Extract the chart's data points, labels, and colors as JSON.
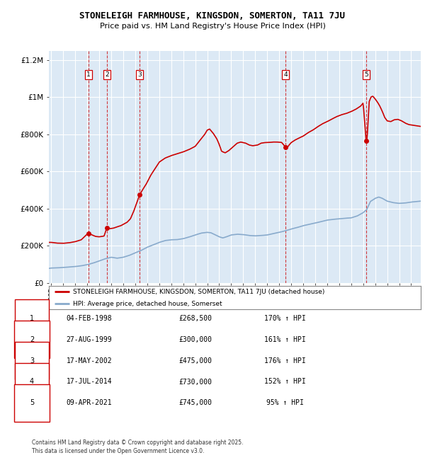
{
  "title": "STONELEIGH FARMHOUSE, KINGSDON, SOMERTON, TA11 7JU",
  "subtitle": "Price paid vs. HM Land Registry's House Price Index (HPI)",
  "background_color": "#ffffff",
  "plot_bg_color": "#dce9f5",
  "red_line_color": "#cc0000",
  "blue_line_color": "#88aacc",
  "sale_points": [
    {
      "label": "1",
      "date": "1998-02-04",
      "price": 268500,
      "x": 1998.09
    },
    {
      "label": "2",
      "date": "1999-08-27",
      "price": 300000,
      "x": 1999.65
    },
    {
      "label": "3",
      "date": "2002-05-17",
      "price": 475000,
      "x": 2002.37
    },
    {
      "label": "4",
      "date": "2014-07-17",
      "price": 730000,
      "x": 2014.54
    },
    {
      "label": "5",
      "date": "2021-04-09",
      "price": 745000,
      "x": 2021.27
    }
  ],
  "legend_entries": [
    "STONELEIGH FARMHOUSE, KINGSDON, SOMERTON, TA11 7JU (detached house)",
    "HPI: Average price, detached house, Somerset"
  ],
  "table_rows": [
    {
      "num": "1",
      "date": "04-FEB-1998",
      "price": "£268,500",
      "hpi": "170% ↑ HPI"
    },
    {
      "num": "2",
      "date": "27-AUG-1999",
      "price": "£300,000",
      "hpi": "161% ↑ HPI"
    },
    {
      "num": "3",
      "date": "17-MAY-2002",
      "price": "£475,000",
      "hpi": "176% ↑ HPI"
    },
    {
      "num": "4",
      "date": "17-JUL-2014",
      "price": "£730,000",
      "hpi": "152% ↑ HPI"
    },
    {
      "num": "5",
      "date": "09-APR-2021",
      "price": "£745,000",
      "hpi": "95% ↑ HPI"
    }
  ],
  "footer": "Contains HM Land Registry data © Crown copyright and database right 2025.\nThis data is licensed under the Open Government Licence v3.0.",
  "ylim": [
    0,
    1250000
  ],
  "xlim": [
    1994.8,
    2025.8
  ],
  "yticks": [
    0,
    200000,
    400000,
    600000,
    800000,
    1000000,
    1200000
  ],
  "ytick_labels": [
    "£0",
    "£200K",
    "£400K",
    "£600K",
    "£800K",
    "£1M",
    "£1.2M"
  ]
}
